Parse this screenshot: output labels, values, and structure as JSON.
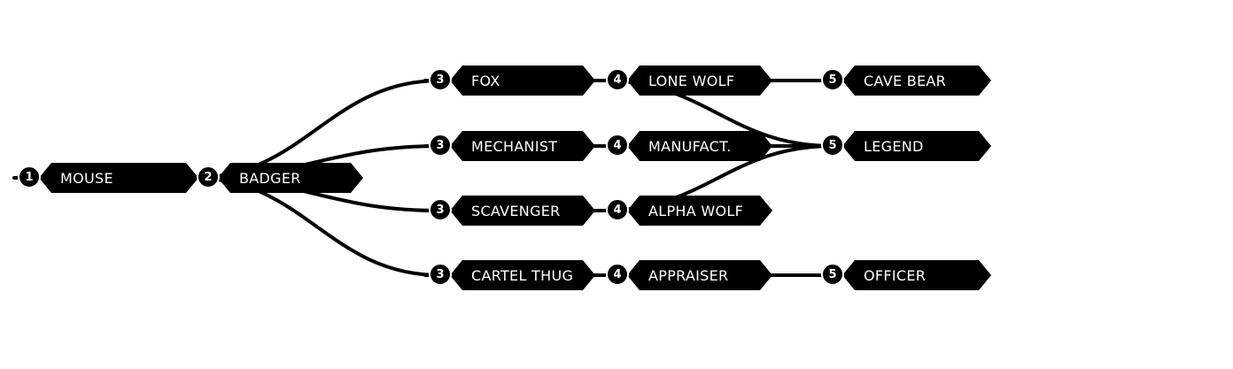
{
  "colors": {
    "node": "#000000",
    "text": "#ffffff",
    "line": "#000000",
    "background": "#ffffff"
  },
  "nodes": [
    {
      "id": "mouse",
      "tier": "1",
      "label": "MOUSE"
    },
    {
      "id": "badger",
      "tier": "2",
      "label": "BADGER"
    },
    {
      "id": "fox",
      "tier": "3",
      "label": "FOX"
    },
    {
      "id": "mechanist",
      "tier": "3",
      "label": "MECHANIST"
    },
    {
      "id": "scavenger",
      "tier": "3",
      "label": "SCAVENGER"
    },
    {
      "id": "cartel-thug",
      "tier": "3",
      "label": "CARTEL THUG"
    },
    {
      "id": "lone-wolf",
      "tier": "4",
      "label": "LONE WOLF"
    },
    {
      "id": "manufact",
      "tier": "4",
      "label": "MANUFACT."
    },
    {
      "id": "alpha-wolf",
      "tier": "4",
      "label": "ALPHA WOLF"
    },
    {
      "id": "appraiser",
      "tier": "4",
      "label": "APPRAISER"
    },
    {
      "id": "cave-bear",
      "tier": "5",
      "label": "CAVE BEAR"
    },
    {
      "id": "legend",
      "tier": "5",
      "label": "LEGEND"
    },
    {
      "id": "officer",
      "tier": "5",
      "label": "OFFICER"
    }
  ],
  "edges": [
    [
      "mouse",
      "badger"
    ],
    [
      "badger",
      "fox"
    ],
    [
      "badger",
      "mechanist"
    ],
    [
      "badger",
      "scavenger"
    ],
    [
      "badger",
      "cartel-thug"
    ],
    [
      "fox",
      "lone-wolf"
    ],
    [
      "mechanist",
      "manufact"
    ],
    [
      "scavenger",
      "alpha-wolf"
    ],
    [
      "cartel-thug",
      "appraiser"
    ],
    [
      "lone-wolf",
      "cave-bear"
    ],
    [
      "lone-wolf",
      "legend"
    ],
    [
      "manufact",
      "legend"
    ],
    [
      "alpha-wolf",
      "legend"
    ],
    [
      "appraiser",
      "officer"
    ]
  ]
}
